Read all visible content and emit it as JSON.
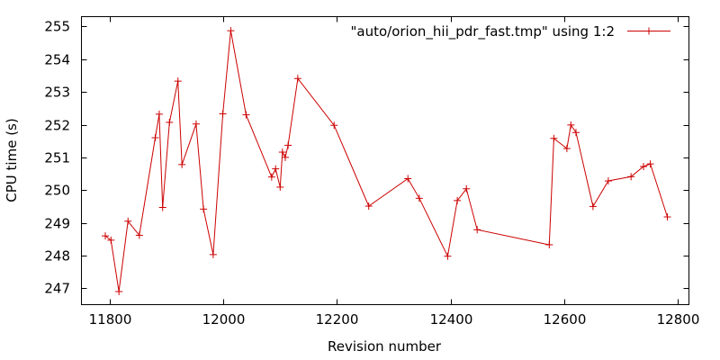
{
  "chart_data": {
    "type": "line",
    "title": "",
    "xlabel": "Revision number",
    "ylabel": "CPU time (s)",
    "xlim": [
      11750,
      12820
    ],
    "ylim": [
      246.5,
      255.3
    ],
    "xticks": [
      11800,
      12000,
      12200,
      12400,
      12600,
      12800
    ],
    "yticks": [
      247,
      248,
      249,
      250,
      251,
      252,
      253,
      254,
      255
    ],
    "grid": false,
    "legend_position": "top-right",
    "line_color": "#cc0000",
    "series": [
      {
        "name": "\"auto/orion_hii_pdr_fast.tmp\" using 1:2",
        "x": [
          11792,
          11802,
          11816,
          11832,
          11852,
          11880,
          11887,
          11893,
          11905,
          11920,
          11927,
          11952,
          11965,
          11982,
          11999,
          12013,
          12040,
          12085,
          12092,
          12100,
          12104,
          12109,
          12114,
          12131,
          12195,
          12256,
          12325,
          12345,
          12395,
          12412,
          12428,
          12447,
          12574,
          12582,
          12605,
          12612,
          12621,
          12651,
          12678,
          12718,
          12740,
          12752,
          12782
        ],
        "y": [
          248.6,
          248.47,
          246.9,
          249.05,
          248.62,
          251.6,
          252.32,
          249.47,
          252.07,
          253.33,
          250.78,
          252.02,
          249.42,
          248.03,
          252.33,
          254.87,
          252.3,
          250.4,
          250.65,
          250.09,
          251.16,
          251.0,
          251.37,
          253.41,
          251.98,
          249.51,
          250.35,
          249.75,
          247.98,
          249.68,
          250.04,
          248.79,
          248.33,
          251.58,
          251.27,
          251.99,
          251.76,
          249.5,
          250.28,
          250.41,
          250.72,
          250.8,
          249.18
        ]
      }
    ]
  }
}
